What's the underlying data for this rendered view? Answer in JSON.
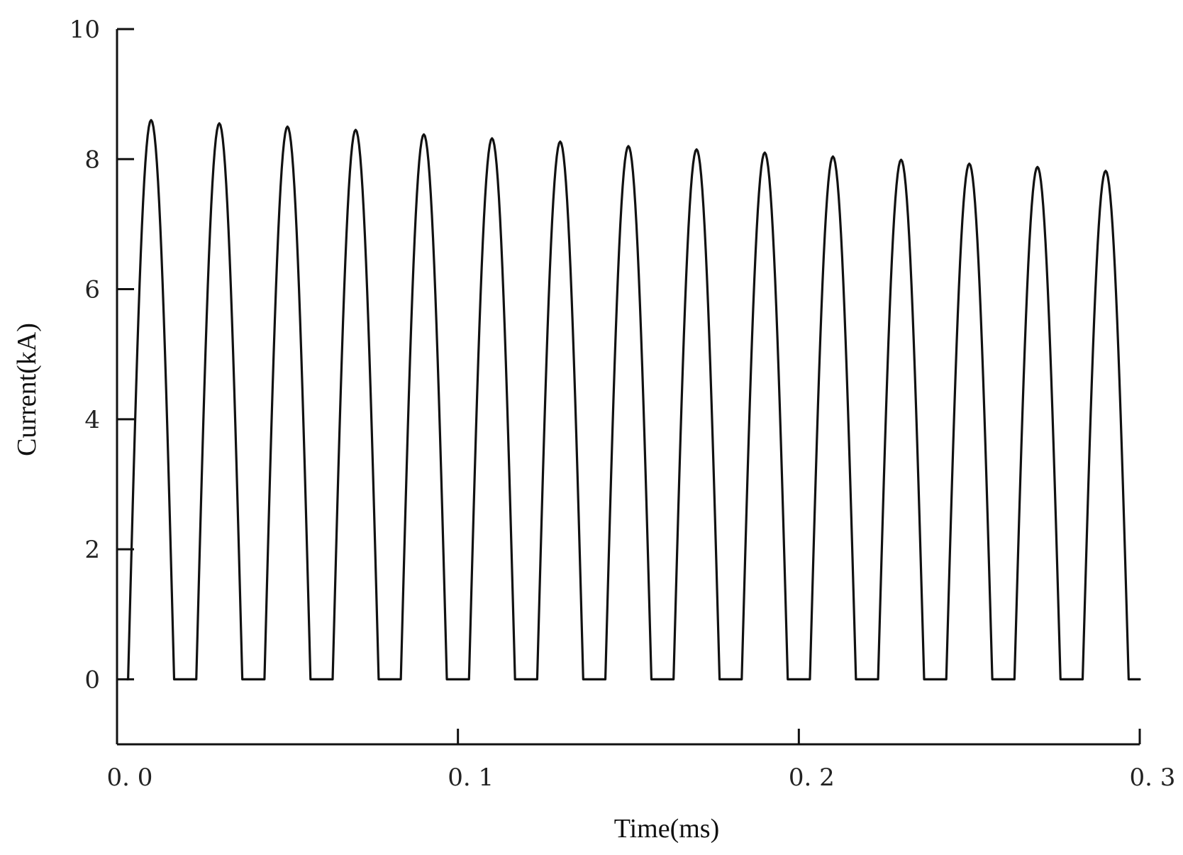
{
  "chart_data": {
    "type": "line",
    "title": "",
    "xlabel": "Time(ms)",
    "ylabel": "Current(kA)",
    "xlim": [
      0.0,
      0.3
    ],
    "ylim": [
      -1,
      10
    ],
    "x_ticks": [
      0.0,
      0.1,
      0.2,
      0.3
    ],
    "x_tick_labels": [
      "0. 0",
      "0. 1",
      "0. 2",
      "0. 3"
    ],
    "y_ticks": [
      0,
      2,
      4,
      6,
      8,
      10
    ],
    "y_tick_labels": [
      "0",
      "2",
      "4",
      "6",
      "8",
      "10"
    ],
    "grid": false,
    "legend": "none",
    "line_color": "#111111",
    "series": [
      {
        "pulse_peaks": [
          {
            "t": 0.01,
            "i": 8.6
          },
          {
            "t": 0.03,
            "i": 8.55
          },
          {
            "t": 0.05,
            "i": 8.5
          },
          {
            "t": 0.07,
            "i": 8.45
          },
          {
            "t": 0.09,
            "i": 8.38
          },
          {
            "t": 0.11,
            "i": 8.32
          },
          {
            "t": 0.13,
            "i": 8.27
          },
          {
            "t": 0.15,
            "i": 8.2
          },
          {
            "t": 0.17,
            "i": 8.15
          },
          {
            "t": 0.19,
            "i": 8.1
          },
          {
            "t": 0.21,
            "i": 8.04
          },
          {
            "t": 0.23,
            "i": 7.99
          },
          {
            "t": 0.25,
            "i": 7.93
          },
          {
            "t": 0.27,
            "i": 7.88
          },
          {
            "t": 0.29,
            "i": 7.82
          }
        ],
        "pulse_width": 0.0135,
        "baseline": 0,
        "start_t": 0.003,
        "end_t": 0.3
      }
    ]
  }
}
